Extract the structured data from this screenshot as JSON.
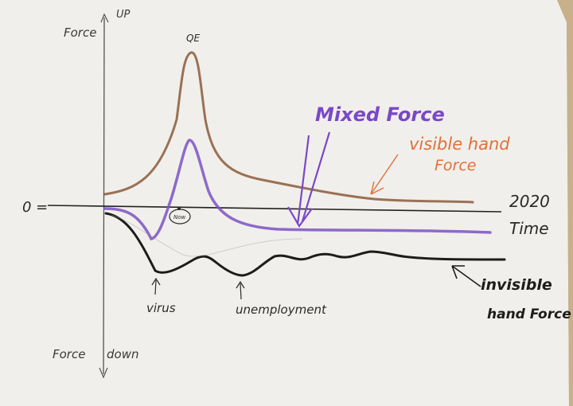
{
  "axis": {
    "up_label": "UP",
    "force_up_label": "Force",
    "force_down_label": "Force",
    "down_label": "down",
    "zero_label": "0 =",
    "time_label": "Time",
    "year_label": "2020"
  },
  "annotations": {
    "qe": "QE",
    "now": "Now",
    "mixed_force": "Mixed Force",
    "visible_hand_line1": "visible hand",
    "visible_hand_line2": "Force",
    "invisible_hand_line1": "invisible",
    "invisible_hand_line2": "hand Force",
    "virus": "virus",
    "unemployment": "unemployment"
  },
  "colors": {
    "paper": "#f2f0ec",
    "ink": "#2b2a2a",
    "visible_hand": "#8a5a3c",
    "visible_label": "#e0703a",
    "mixed": "#7b52c4",
    "mixed_label": "#7a48c8",
    "invisible": "#1e1c1b",
    "pencil": "#6a6a6a"
  }
}
